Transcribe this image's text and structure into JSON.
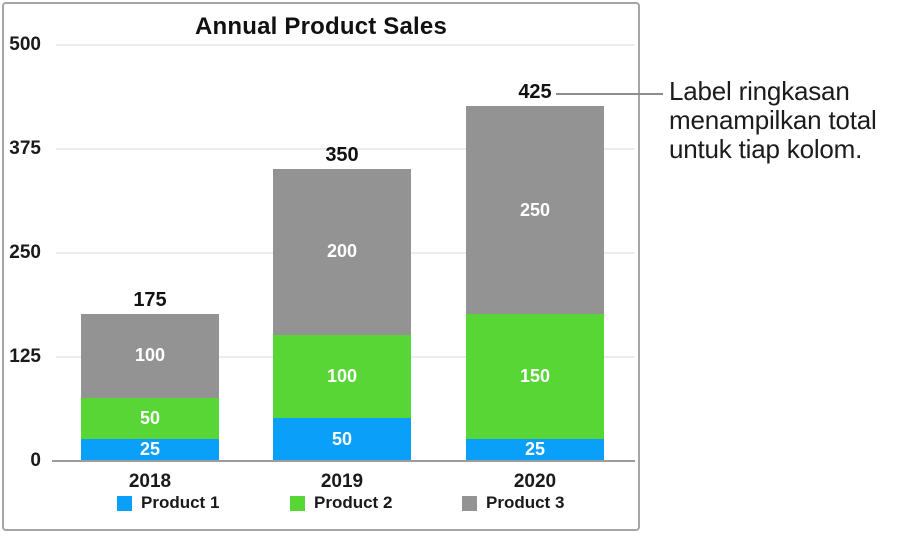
{
  "chart_data": {
    "type": "bar",
    "stacked": true,
    "title": "Annual Product Sales",
    "categories": [
      "2018",
      "2019",
      "2020"
    ],
    "series": [
      {
        "name": "Product 1",
        "color": "#0a9ff9",
        "values": [
          25,
          50,
          25
        ]
      },
      {
        "name": "Product 2",
        "color": "#57d636",
        "values": [
          50,
          100,
          150
        ]
      },
      {
        "name": "Product 3",
        "color": "#939393",
        "values": [
          100,
          200,
          250
        ]
      }
    ],
    "totals": [
      175,
      350,
      425
    ],
    "y_ticks": [
      0,
      125,
      250,
      375,
      500
    ],
    "ylim": [
      0,
      500
    ],
    "grid": true,
    "legend_position": "bottom",
    "xlabel": "",
    "ylabel": ""
  },
  "annotation": {
    "lines": [
      "Label ringkasan",
      "menampilkan total",
      "untuk tiap kolom."
    ]
  },
  "colors": {
    "card_border": "#a5a5a5",
    "gridline": "#ececec",
    "axis_line": "#9b9b9b",
    "callout_line": "#8d8d8d",
    "text": "#1a1a1a"
  }
}
